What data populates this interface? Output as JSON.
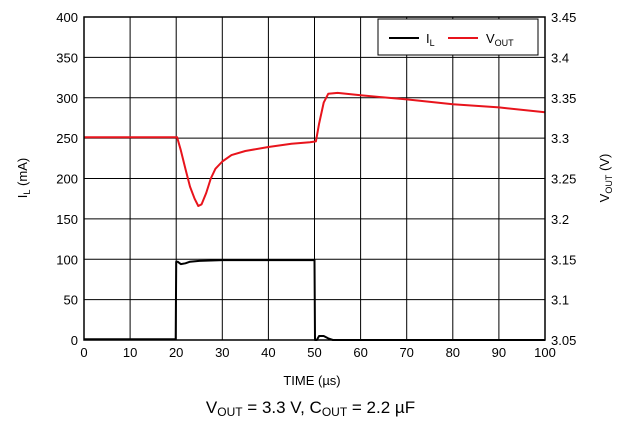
{
  "chart_data": {
    "type": "line",
    "caption": {
      "vout_sym": "V",
      "vout_sub": "OUT",
      "vout_val": " = 3.3 V, ",
      "cout_sym": "C",
      "cout_sub": "OUT",
      "cout_val": " = 2.2 µF"
    },
    "xlabel": "TIME (µs)",
    "ylabel_left": {
      "sym": "I",
      "sub": "L",
      "unit": " (mA)"
    },
    "ylabel_right": {
      "sym": "V",
      "sub": "OUT",
      "unit": " (V)"
    },
    "xlim": [
      0,
      100
    ],
    "ylim_left": [
      0,
      400
    ],
    "ylim_right": [
      3.05,
      3.45
    ],
    "x_ticks": [
      "0",
      "10",
      "20",
      "30",
      "40",
      "50",
      "60",
      "70",
      "80",
      "90",
      "100"
    ],
    "y_left_ticks": [
      "0",
      "50",
      "100",
      "150",
      "200",
      "250",
      "300",
      "350",
      "400"
    ],
    "y_right_ticks": [
      "3.05",
      "3.1",
      "3.15",
      "3.2",
      "3.25",
      "3.3",
      "3.35",
      "3.4",
      "3.45"
    ],
    "grid": true,
    "legend_position": "top-right",
    "series": [
      {
        "name": "I_L",
        "legend_sym": "I",
        "legend_sub": "L",
        "axis": "left",
        "color": "#000000",
        "x": [
          0,
          19.9,
          20.0,
          20.3,
          21.0,
          22.0,
          23.0,
          25.0,
          30.0,
          40.0,
          50.0,
          50.1,
          50.5,
          51.0,
          52.0,
          53.0,
          54.0,
          60.0,
          100.0
        ],
        "y": [
          1,
          1,
          97,
          97,
          94,
          95,
          97,
          98,
          99,
          99,
          99,
          0,
          0,
          5,
          5,
          2,
          0,
          0,
          0
        ]
      },
      {
        "name": "V_OUT",
        "legend_sym": "V",
        "legend_sub": "OUT",
        "axis": "right",
        "color": "#e8141c",
        "x": [
          0,
          10,
          20.2,
          21,
          22,
          23,
          24,
          24.8,
          25.5,
          26.5,
          27.5,
          28.5,
          30,
          32,
          35,
          40,
          45,
          49,
          50.3,
          51,
          52,
          53,
          55,
          60,
          70,
          80,
          90,
          100
        ],
        "y": [
          3.301,
          3.301,
          3.301,
          3.285,
          3.262,
          3.24,
          3.225,
          3.216,
          3.218,
          3.232,
          3.25,
          3.262,
          3.271,
          3.279,
          3.284,
          3.289,
          3.293,
          3.295,
          3.296,
          3.318,
          3.344,
          3.355,
          3.356,
          3.353,
          3.348,
          3.342,
          3.338,
          3.332
        ]
      }
    ]
  }
}
